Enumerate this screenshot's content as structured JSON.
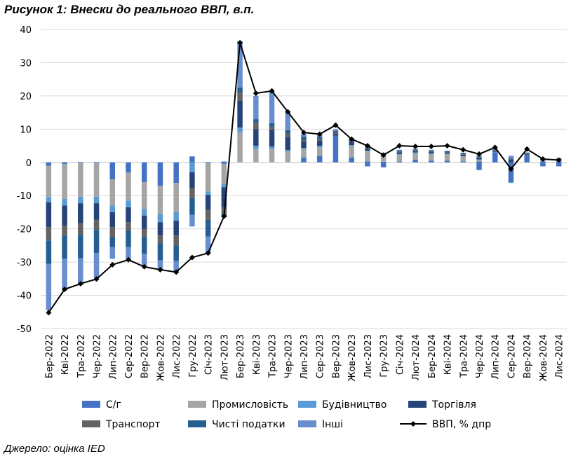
{
  "figure": {
    "title": "Рисунок 1: Внески до реального ВВП, в.п.",
    "source": "Джерело: оцінка IED"
  },
  "chart_data": {
    "type": "bar",
    "stacked": true,
    "categories": [
      "Бер-2022",
      "Кві-2022",
      "Тра-2022",
      "Чер-2022",
      "Лип-2022",
      "Сер-2022",
      "Вер-2022",
      "Жов-2022",
      "Лис-2022",
      "Гру-2022",
      "Січ-2023",
      "Лют-2023",
      "Бер-2023",
      "Кві-2023",
      "Тра-2023",
      "Чер-2023",
      "Лип-2023",
      "Сер-2023",
      "Вер-2023",
      "Жов-2023",
      "Лис-2023",
      "Гру-2023",
      "Січ-2024",
      "Лют-2024",
      "Бер-2024",
      "Кві-2024",
      "Тра-2024",
      "Чер-2024",
      "Лип-2024",
      "Сер-2024",
      "Вер-2024",
      "Жов-2024",
      "Лис-2024"
    ],
    "tick_labels": [
      "Бер-2022",
      "Кві-2022",
      "Тра-2022",
      "Чер-2022",
      "Лип-2022",
      "Сер-2022",
      "Вер-2022",
      "Жов-2022",
      "Лис-2022",
      "Гру-2022",
      "Січ-2023",
      "Лют-2023",
      "Бер-2023",
      "Кві-2023",
      "Тра-2023",
      "Чер-2023",
      "Лип-2023",
      "Сер-2023",
      "Вер-2023",
      "Жов-2023",
      "Лис-2023",
      "Гру-2023",
      "Січ-2024",
      "Лют-2024",
      "Бер-2024",
      "Кві-2024",
      "Тра-2024",
      "Чер-2024",
      "Лип-2024",
      "Сер-2024",
      "Вер-2024",
      "Жов-2024",
      "Лис-2024"
    ],
    "ylim": [
      -50,
      40
    ],
    "yticks": [
      40,
      30,
      20,
      10,
      0,
      -10,
      -20,
      -30,
      -40,
      -50
    ],
    "grid": true,
    "legend_position": "bottom",
    "series": [
      {
        "name": "С/г",
        "color": "#4472C4",
        "values": [
          -1,
          -0.5,
          -0.3,
          -0.3,
          -5,
          -3,
          -6,
          -7,
          -6.2,
          1.8,
          -0.3,
          -0.5,
          0,
          0,
          0,
          0,
          1.5,
          2,
          8,
          1.5,
          0.3,
          0.2,
          0.3,
          0.8,
          0.5,
          0.5,
          0.3,
          0.3,
          3,
          -2,
          2,
          0.3,
          0.3
        ]
      },
      {
        "name": "Промисловість",
        "color": "#A5A5A5",
        "values": [
          -9.5,
          -10.5,
          -10,
          -10,
          -8,
          -8.5,
          -8,
          -8.5,
          -8.8,
          0,
          -8.5,
          -6,
          9,
          4,
          4,
          3.2,
          2.5,
          2.5,
          0,
          3.5,
          3,
          2,
          2,
          2,
          2,
          2,
          1.5,
          0.5,
          0,
          0,
          0,
          0.5,
          0.5
        ]
      },
      {
        "name": "Будівництво",
        "color": "#5B9BD5",
        "values": [
          -1.5,
          -2,
          -2,
          -2,
          -2,
          -2,
          -2,
          -2.5,
          -2.5,
          -3,
          -1,
          -1,
          1.5,
          1,
          0.8,
          0.5,
          0.3,
          0.5,
          0,
          0.2,
          0.2,
          0.1,
          0.2,
          0.2,
          0.2,
          0.1,
          0.1,
          0.1,
          0.1,
          -0.2,
          0.1,
          0.1,
          0.1
        ]
      },
      {
        "name": "Торгівля",
        "color": "#264478",
        "values": [
          -7.5,
          -6,
          -6,
          -5,
          -4.5,
          -4.5,
          -4,
          -4,
          -4.5,
          -4.8,
          -4.5,
          -6,
          8,
          5,
          5,
          4,
          2,
          1.5,
          0.5,
          1,
          0.5,
          0.2,
          0.4,
          0.4,
          0.4,
          0.3,
          0.4,
          0.5,
          0.2,
          0.8,
          0.3,
          0.1,
          0.1
        ]
      },
      {
        "name": "Транспорт",
        "color": "#636363",
        "values": [
          -4,
          -3,
          -3.5,
          -3,
          -3,
          -2.5,
          -2.5,
          -2.5,
          -3,
          -3,
          -3,
          -2,
          2.5,
          2,
          1,
          1,
          0.5,
          0.5,
          0.5,
          0.3,
          0.2,
          0.1,
          0.3,
          0.2,
          0.2,
          0.2,
          0.2,
          0.2,
          0.2,
          0.2,
          0.2,
          0.1,
          0.1
        ]
      },
      {
        "name": "Чисті податки",
        "color": "#255E91",
        "values": [
          -7,
          -7,
          -7,
          -7,
          -3,
          -5,
          -5,
          -5,
          -4.7,
          -5,
          -5,
          -1,
          1.5,
          1,
          1,
          1,
          1,
          0.6,
          0.5,
          0.3,
          0.3,
          0.2,
          0.3,
          0.3,
          0.3,
          0.3,
          0.3,
          0.2,
          0.2,
          0.2,
          0.2,
          0.1,
          0.1
        ]
      },
      {
        "name": "Інші",
        "color": "#698ED0",
        "values": [
          -14,
          -9.5,
          -8,
          -7.5,
          -3.5,
          -3.5,
          -3.5,
          -3,
          -3.5,
          -3.5,
          -5,
          0.3,
          14,
          7,
          9.5,
          5.7,
          0.8,
          0.6,
          0.5,
          0.5,
          0.5,
          0.1,
          0.3,
          0.2,
          0.2,
          0.1,
          0.1,
          0.2,
          0.3,
          0.8,
          0.2,
          0.1,
          0.1
        ]
      }
    ],
    "negative_extras": {
      "Лис-2023": {
        "С/г": -1.2
      },
      "Гру-2023": {
        "С/г": -1.5
      },
      "Чер-2024": {
        "С/г": -2.3
      },
      "Сер-2024": {
        "С/г": -4
      },
      "Жов-2024": {
        "С/г": -1.2
      },
      "Лис-2024": {
        "С/г": -1.2
      }
    },
    "line": {
      "name": "ВВП, % дпр",
      "color": "#000000",
      "values": [
        -45.2,
        -38.2,
        -36.5,
        -35.1,
        -30.8,
        -29.3,
        -31.4,
        -32.3,
        -33,
        -28.6,
        -27.3,
        -16.2,
        36,
        20.8,
        21.5,
        15.2,
        9,
        8.5,
        11.2,
        7,
        5,
        2.2,
        5,
        4.8,
        4.8,
        5,
        3.8,
        2.5,
        4.5,
        -2,
        4,
        1,
        0.7
      ]
    }
  }
}
